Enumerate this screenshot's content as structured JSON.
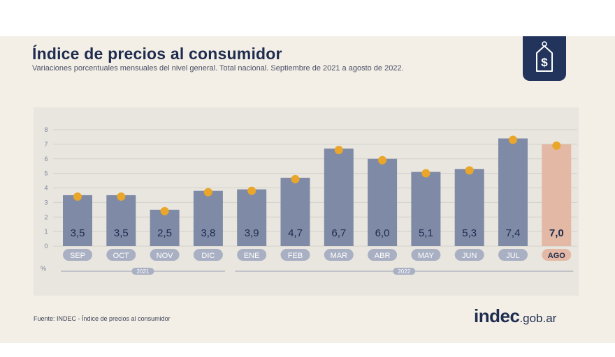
{
  "chart_data": {
    "type": "bar",
    "title": "Índice de precios al consumidor",
    "subtitle": "Variaciones porcentuales mensuales del nivel general. Total nacional. Septiembre de 2021 a agosto de 2022.",
    "categories": [
      "SEP",
      "OCT",
      "NOV",
      "DIC",
      "ENE",
      "FEB",
      "MAR",
      "ABR",
      "MAY",
      "JUN",
      "JUL",
      "AGO"
    ],
    "values": [
      3.5,
      3.5,
      2.5,
      3.8,
      3.9,
      4.7,
      6.7,
      6.0,
      5.1,
      5.3,
      7.4,
      7.0
    ],
    "value_labels": [
      "3,5",
      "3,5",
      "2,5",
      "3,8",
      "3,9",
      "4,7",
      "6,7",
      "6,0",
      "5,1",
      "5,3",
      "7,4",
      "7,0"
    ],
    "highlight_category": "AGO",
    "ylabel": "%",
    "ylim": [
      0,
      8
    ],
    "yticks": [
      "0",
      "1",
      "2",
      "3",
      "4",
      "5",
      "6",
      "7",
      "8"
    ],
    "grid": true,
    "year_groups": [
      {
        "label": "2021",
        "categories": [
          "SEP",
          "OCT",
          "NOV",
          "DIC"
        ]
      },
      {
        "label": "2022",
        "categories": [
          "ENE",
          "FEB",
          "MAR",
          "ABR",
          "MAY",
          "JUN",
          "JUL",
          "AGO"
        ]
      }
    ],
    "colors": {
      "bar": "#7e8aa6",
      "highlight_bar": "#e3b9a5",
      "marker": "#eaa62a",
      "title": "#1f2c4f"
    }
  },
  "source": "Fuente: INDEC - Índice de precios al consumidor",
  "brand": {
    "name": "indec",
    "domain": ".gob.ar"
  },
  "logo_icon": "price-tag-dollar-icon"
}
